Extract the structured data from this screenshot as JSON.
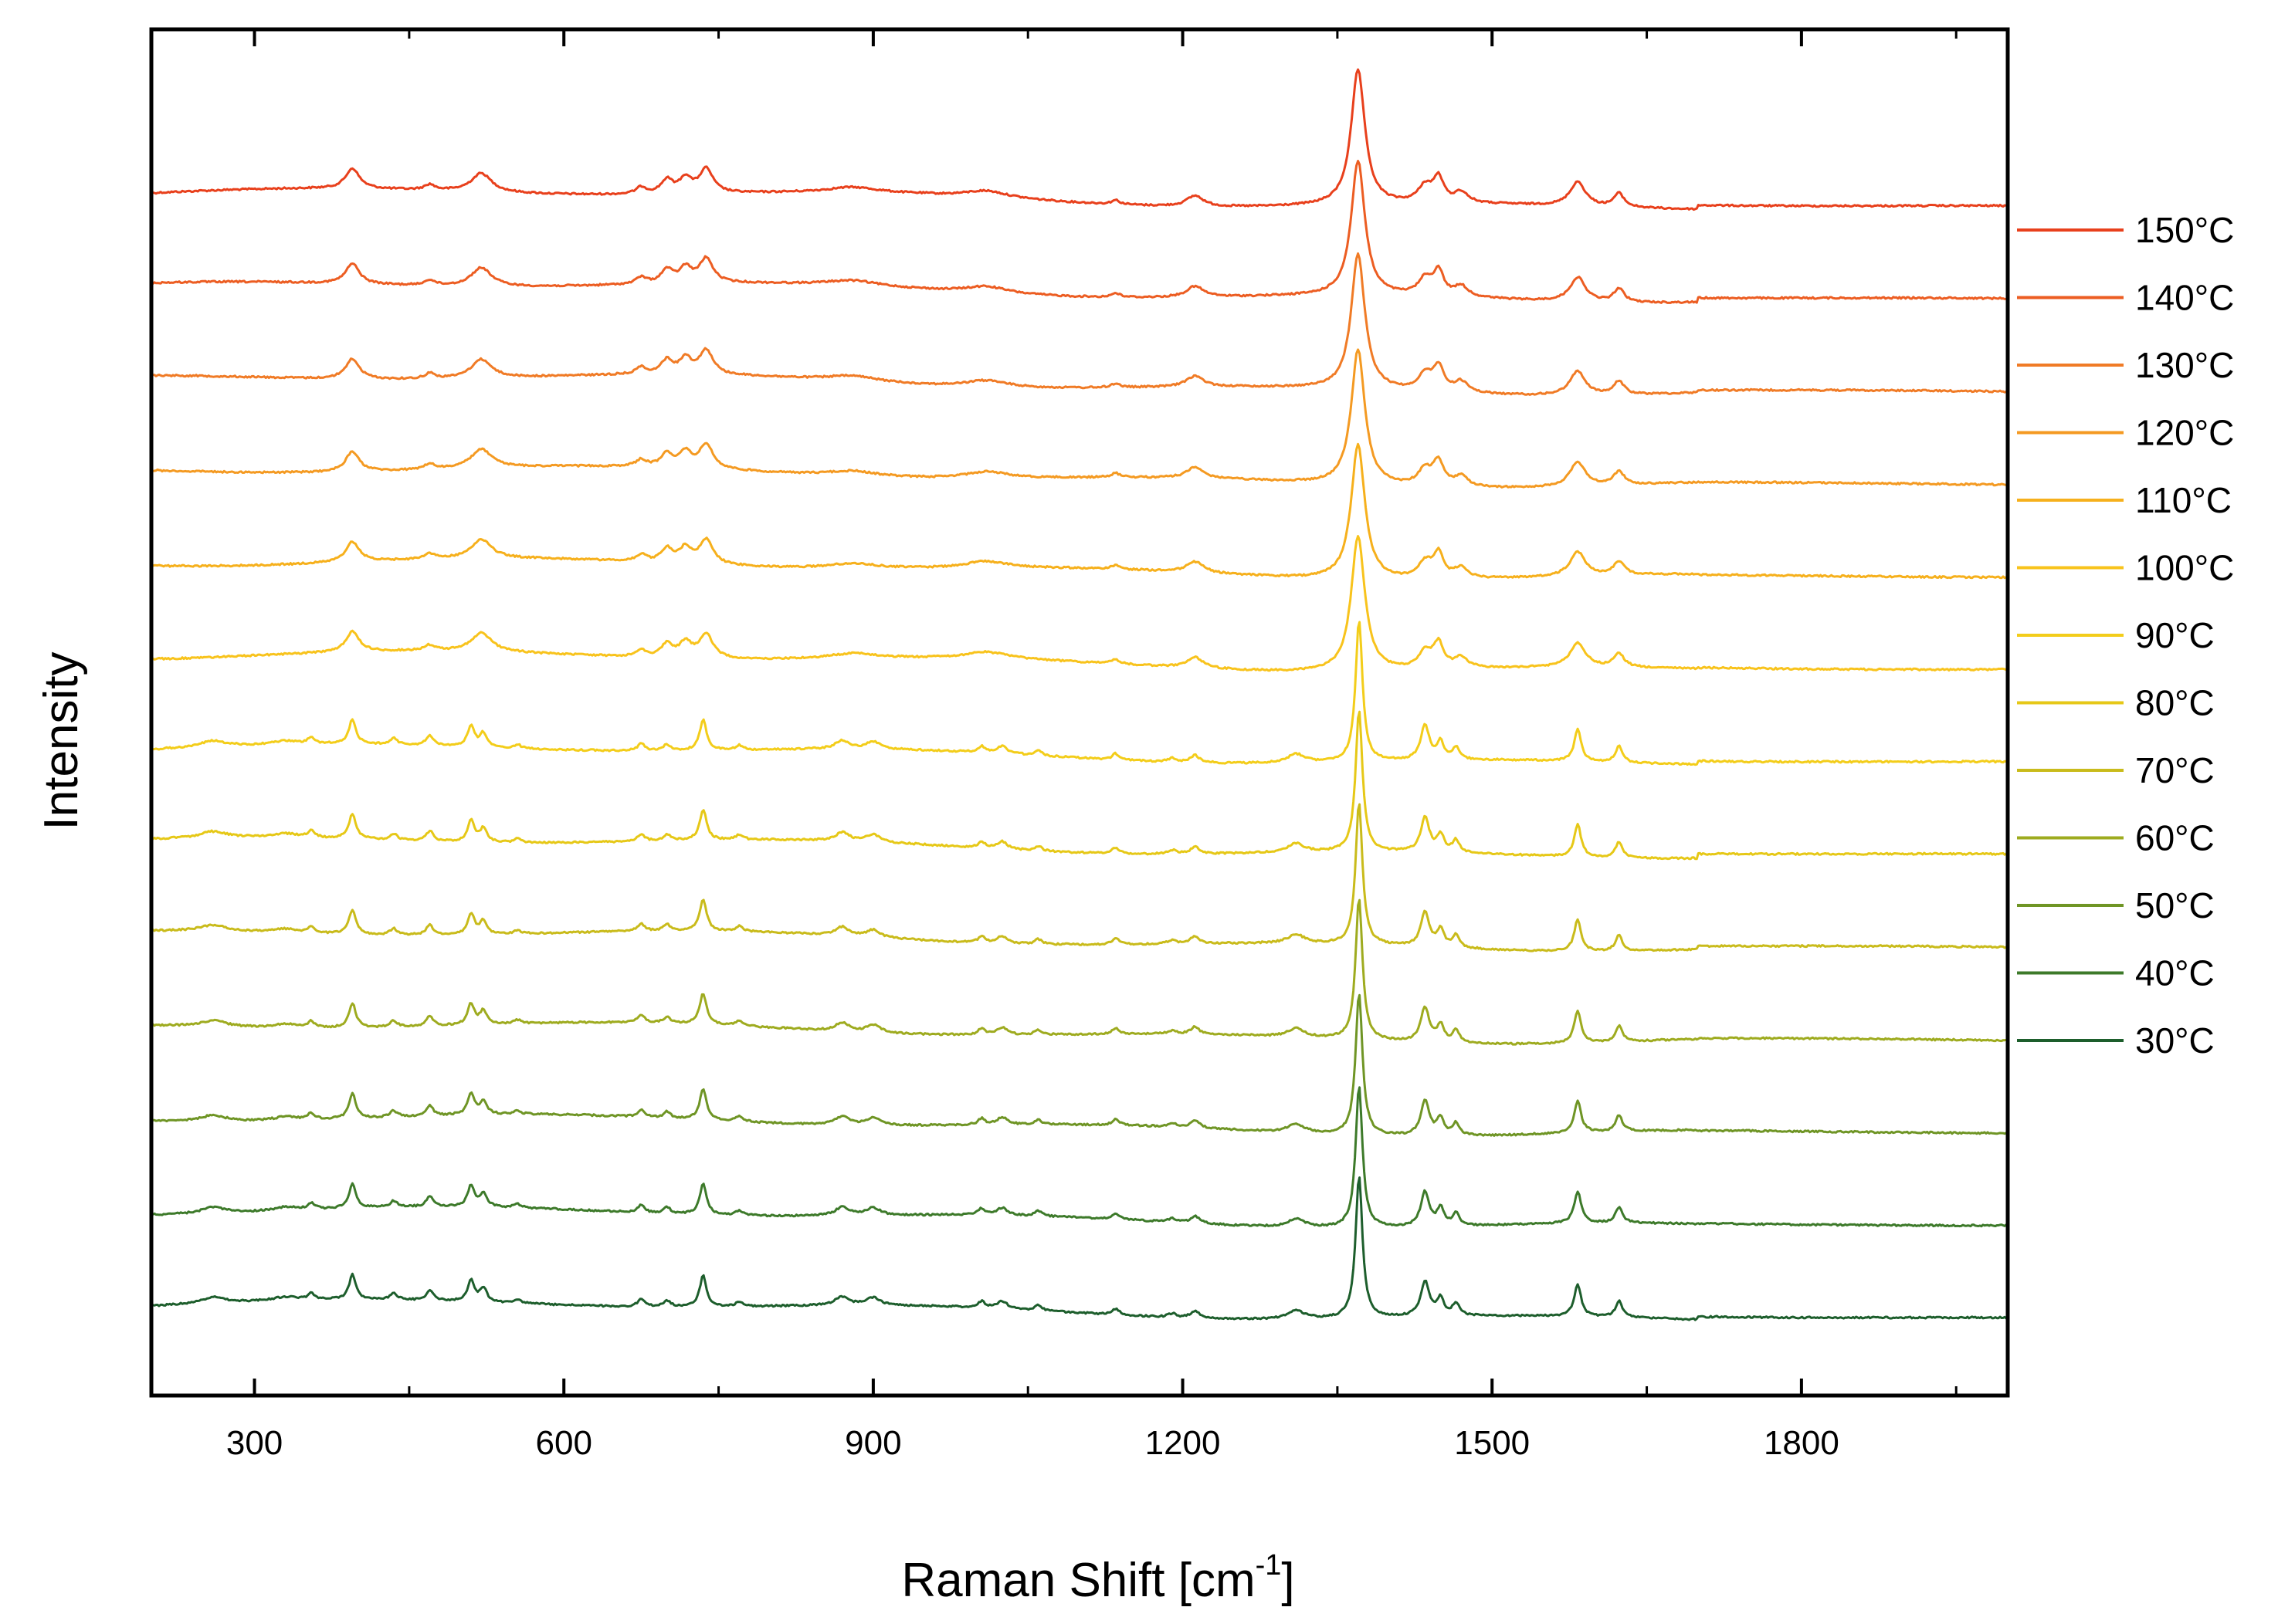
{
  "chart_data": {
    "type": "line",
    "xlabel": "Raman Shift [cm",
    "xlabel_superscript": "-1",
    "xlabel_suffix": "]",
    "ylabel": "Intensity",
    "xlim": [
      200,
      2000
    ],
    "xticks": [
      300,
      600,
      900,
      1200,
      1500,
      1800
    ],
    "xtick_labels": [
      "300",
      "600",
      "900",
      "1200",
      "1500",
      "1800"
    ],
    "y_tick_labels_shown": false,
    "legend_position": "right, outside plot",
    "style": "stacked offset spectra",
    "series": [
      {
        "name": "150°C",
        "temp": "150",
        "color": "#e8401c",
        "phase": "high"
      },
      {
        "name": "140°C",
        "temp": "140",
        "color": "#ec5d22",
        "phase": "high"
      },
      {
        "name": "130°C",
        "temp": "130",
        "color": "#f07b26",
        "phase": "high"
      },
      {
        "name": "120°C",
        "temp": "120",
        "color": "#f49a22",
        "phase": "high"
      },
      {
        "name": "110°C",
        "temp": "110",
        "color": "#f6b01c",
        "phase": "high"
      },
      {
        "name": "100°C",
        "temp": "100",
        "color": "#f8c31c",
        "phase": "high"
      },
      {
        "name": "90°C",
        "temp": "90",
        "color": "#f3cd1a",
        "phase": "low"
      },
      {
        "name": "80°C",
        "temp": "80",
        "color": "#e6c817",
        "phase": "low"
      },
      {
        "name": "70°C",
        "temp": "70",
        "color": "#c9bb1b",
        "phase": "low"
      },
      {
        "name": "60°C",
        "temp": "60",
        "color": "#9eab1f",
        "phase": "low"
      },
      {
        "name": "50°C",
        "temp": "50",
        "color": "#6f9525",
        "phase": "low"
      },
      {
        "name": "40°C",
        "temp": "40",
        "color": "#3d7a2a",
        "phase": "low"
      },
      {
        "name": "30°C",
        "temp": "30",
        "color": "#1d5e2c",
        "phase": "low"
      }
    ],
    "peaks_high_phase": [
      [
        395,
        0.15,
        8
      ],
      [
        470,
        0.04,
        6
      ],
      [
        520,
        0.14,
        12
      ],
      [
        675,
        0.05,
        6
      ],
      [
        700,
        0.1,
        7
      ],
      [
        718,
        0.11,
        7
      ],
      [
        738,
        0.18,
        8
      ],
      [
        880,
        0.04,
        30
      ],
      [
        1010,
        0.05,
        25
      ],
      [
        1135,
        0.03,
        5
      ],
      [
        1212,
        0.08,
        10
      ],
      [
        1370,
        1.0,
        8
      ],
      [
        1435,
        0.12,
        8
      ],
      [
        1448,
        0.18,
        6
      ],
      [
        1470,
        0.08,
        8
      ],
      [
        1583,
        0.18,
        9
      ],
      [
        1623,
        0.1,
        6
      ]
    ],
    "peaks_low_phase": [
      [
        260,
        0.05,
        15
      ],
      [
        330,
        0.03,
        15
      ],
      [
        355,
        0.05,
        4
      ],
      [
        395,
        0.2,
        4
      ],
      [
        435,
        0.05,
        4
      ],
      [
        470,
        0.08,
        4
      ],
      [
        510,
        0.17,
        4
      ],
      [
        522,
        0.11,
        4
      ],
      [
        555,
        0.03,
        4
      ],
      [
        675,
        0.06,
        4
      ],
      [
        700,
        0.05,
        4
      ],
      [
        735,
        0.25,
        4
      ],
      [
        770,
        0.04,
        4
      ],
      [
        870,
        0.07,
        8
      ],
      [
        900,
        0.06,
        8
      ],
      [
        1005,
        0.05,
        4
      ],
      [
        1025,
        0.06,
        6
      ],
      [
        1060,
        0.04,
        4
      ],
      [
        1135,
        0.05,
        4
      ],
      [
        1190,
        0.03,
        5
      ],
      [
        1212,
        0.06,
        5
      ],
      [
        1310,
        0.07,
        10
      ],
      [
        1371,
        1.15,
        4
      ],
      [
        1435,
        0.28,
        5
      ],
      [
        1450,
        0.14,
        4
      ],
      [
        1465,
        0.1,
        4
      ],
      [
        1583,
        0.26,
        4
      ],
      [
        1623,
        0.13,
        4
      ]
    ]
  }
}
